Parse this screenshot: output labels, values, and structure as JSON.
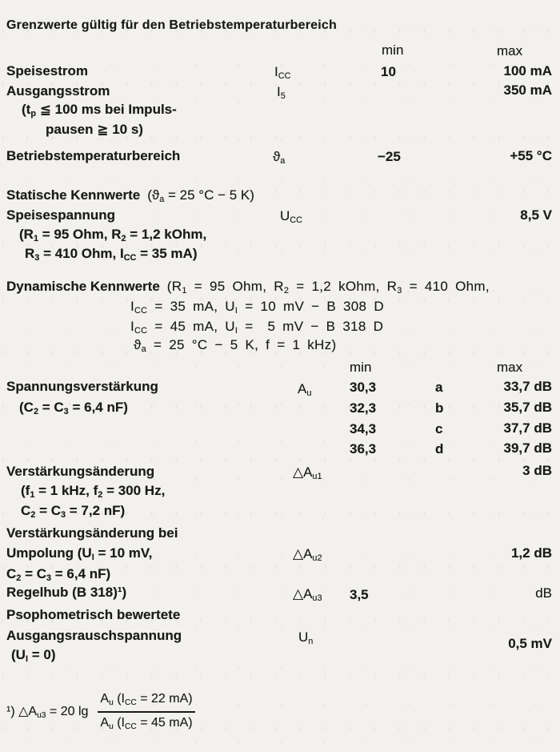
{
  "title": "Grenzwerte gültig für den Betriebstemperaturbereich",
  "grenzwerte": {
    "min_header": "min",
    "max_header": "max",
    "speisestrom": {
      "label": "Speisestrom",
      "symbol": "I~CC~",
      "min": "10",
      "max": "100 mA"
    },
    "ausgangsstrom": {
      "label": "Ausgangsstrom",
      "symbol": "I~5~",
      "max": "350 mA",
      "cond1": "(t~p~ ≦ 100 ms bei Impuls-",
      "cond2": "pausen ≧ 10 s)"
    },
    "betriebstemperatur": {
      "label": "Betriebstemperaturbereich",
      "symbol": "ϑ~a~",
      "min": "−25",
      "max": "+55 °C"
    }
  },
  "statisch": {
    "heading": "Statische Kennwerte",
    "heading_cond": "(ϑ~a~ = 25 °C − 5 K)",
    "speisespannung": {
      "label": "Speisespannung",
      "symbol": "U~CC~",
      "max": "8,5 V",
      "cond1": "(R~1~ = 95 Ohm, R~2~ = 1,2 kOhm,",
      "cond2": "R~3~ = 410 Ohm, I~CC~ = 35 mA)"
    }
  },
  "dynamisch": {
    "heading": "Dynamische Kennwerte",
    "cond1": "(R~1~ = 95 Ohm, R~2~ = 1,2 kOhm, R~3~ = 410 Ohm,",
    "cond2": "I~CC~ = 35 mA, U~I~ = 10 mV − B 308 D",
    "cond3": "I~CC~ = 45 mA, U~I~ =  5 mV − B 318 D",
    "cond4": "ϑ~a~ = 25 °C − 5 K, f = 1 kHz)",
    "min_header": "min",
    "max_header": "max",
    "spannungsverstaerkung": {
      "label": "Spannungsverstärkung",
      "cond": "(C~2~ = C~3~ = 6,4 nF)",
      "symbol": "A~u~",
      "rows": [
        {
          "min": "30,3",
          "grade": "a",
          "max": "33,7 dB"
        },
        {
          "min": "32,3",
          "grade": "b",
          "max": "35,7 dB"
        },
        {
          "min": "34,3",
          "grade": "c",
          "max": "37,7 dB"
        },
        {
          "min": "36,3",
          "grade": "d",
          "max": "39,7 dB"
        }
      ]
    },
    "verstaerkungsaenderung1": {
      "label": "Verstärkungsänderung",
      "cond1": "(f~1~ = 1 kHz, f~2~ = 300 Hz,",
      "cond2": "C~2~ = C~3~ = 7,2 nF)",
      "symbol": "△A~u1~",
      "max": "3 dB"
    },
    "verstaerkungsaenderung2": {
      "label1": "Verstärkungsänderung bei",
      "label2": "Umpolung (U~I~ = 10 mV,",
      "label3": "C~2~ = C~3~ = 6,4 nF)",
      "symbol": "△A~u2~",
      "max": "1,2 dB"
    },
    "regelhub": {
      "label": "Regelhub (B 318)¹)",
      "symbol": "△A~u3~",
      "min": "3,5",
      "unit": "dB"
    },
    "rauschspannung": {
      "label1": "Psophometrisch bewertete",
      "label2": "Ausgangsrauschspannung",
      "cond": "(U~I~ = 0)",
      "symbol": "U~n~",
      "max": "0,5 mV"
    }
  },
  "footnote": {
    "prefix": "¹) △A~u3~ = 20 lg",
    "numerator": "A~u~ (I~CC~ = 22 mA)",
    "denominator": "A~u~ (I~CC~ = 45 mA)"
  }
}
